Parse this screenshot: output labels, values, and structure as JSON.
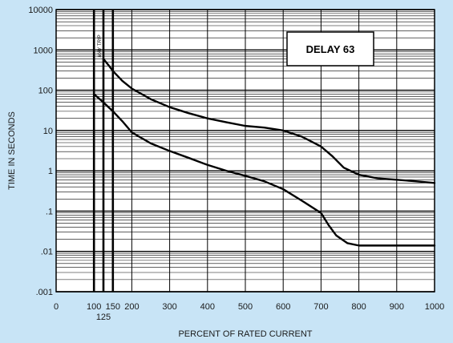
{
  "chart_data": {
    "type": "line",
    "title": "",
    "xlabel": "PERCENT OF RATED CURRENT",
    "ylabel": "TIME IN SECONDS",
    "xlim": [
      0,
      1000
    ],
    "ylim": [
      0.001,
      10000
    ],
    "y_scale": "log",
    "grid": true,
    "x_ticks": [
      0,
      100,
      150,
      200,
      300,
      400,
      500,
      600,
      700,
      800,
      900,
      1000
    ],
    "x_tick_labels": [
      "0",
      "100",
      "150",
      "200",
      "300",
      "400",
      "500",
      "600",
      "700",
      "800",
      "900",
      "1000"
    ],
    "x_extra_tick": 125,
    "x_extra_tick_label": "125",
    "y_ticks": [
      0.001,
      0.01,
      0.1,
      1,
      10,
      100,
      1000,
      10000
    ],
    "y_tick_labels": [
      ".001",
      ".01",
      ".1",
      "1",
      "10",
      "100",
      "1000",
      "10000"
    ],
    "reference_lines_x": [
      100,
      125,
      150
    ],
    "legend_box": {
      "text": "DELAY 63",
      "position": "top-right"
    },
    "annotation": {
      "text": "MAY TRIP",
      "x": 125,
      "y_from": 80,
      "y_to": 600
    },
    "series": [
      {
        "values": [
          [
            125,
            600
          ],
          [
            140,
            400
          ],
          [
            150,
            300
          ],
          [
            175,
            170
          ],
          [
            200,
            110
          ],
          [
            250,
            60
          ],
          [
            300,
            38
          ],
          [
            350,
            27
          ],
          [
            400,
            20
          ],
          [
            450,
            16
          ],
          [
            500,
            13
          ],
          [
            550,
            11.8
          ],
          [
            600,
            10
          ],
          [
            650,
            7
          ],
          [
            700,
            4
          ],
          [
            730,
            2.3
          ],
          [
            760,
            1.2
          ],
          [
            800,
            0.8
          ],
          [
            850,
            0.65
          ],
          [
            900,
            0.6
          ],
          [
            950,
            0.55
          ],
          [
            1000,
            0.5
          ]
        ]
      },
      {
        "values": [
          [
            100,
            80
          ],
          [
            125,
            50
          ],
          [
            150,
            30
          ],
          [
            175,
            17
          ],
          [
            200,
            9
          ],
          [
            250,
            4.8
          ],
          [
            300,
            3.1
          ],
          [
            350,
            2.1
          ],
          [
            400,
            1.4
          ],
          [
            450,
            1.0
          ],
          [
            500,
            0.75
          ],
          [
            550,
            0.55
          ],
          [
            600,
            0.35
          ],
          [
            650,
            0.18
          ],
          [
            700,
            0.09
          ],
          [
            720,
            0.045
          ],
          [
            740,
            0.025
          ],
          [
            770,
            0.016
          ],
          [
            800,
            0.014
          ],
          [
            850,
            0.014
          ],
          [
            900,
            0.014
          ],
          [
            950,
            0.014
          ],
          [
            1000,
            0.014
          ]
        ]
      }
    ],
    "colors": {
      "background": "#c8e4f6",
      "plot_area": "#ffffff",
      "lines": "#000000"
    }
  }
}
